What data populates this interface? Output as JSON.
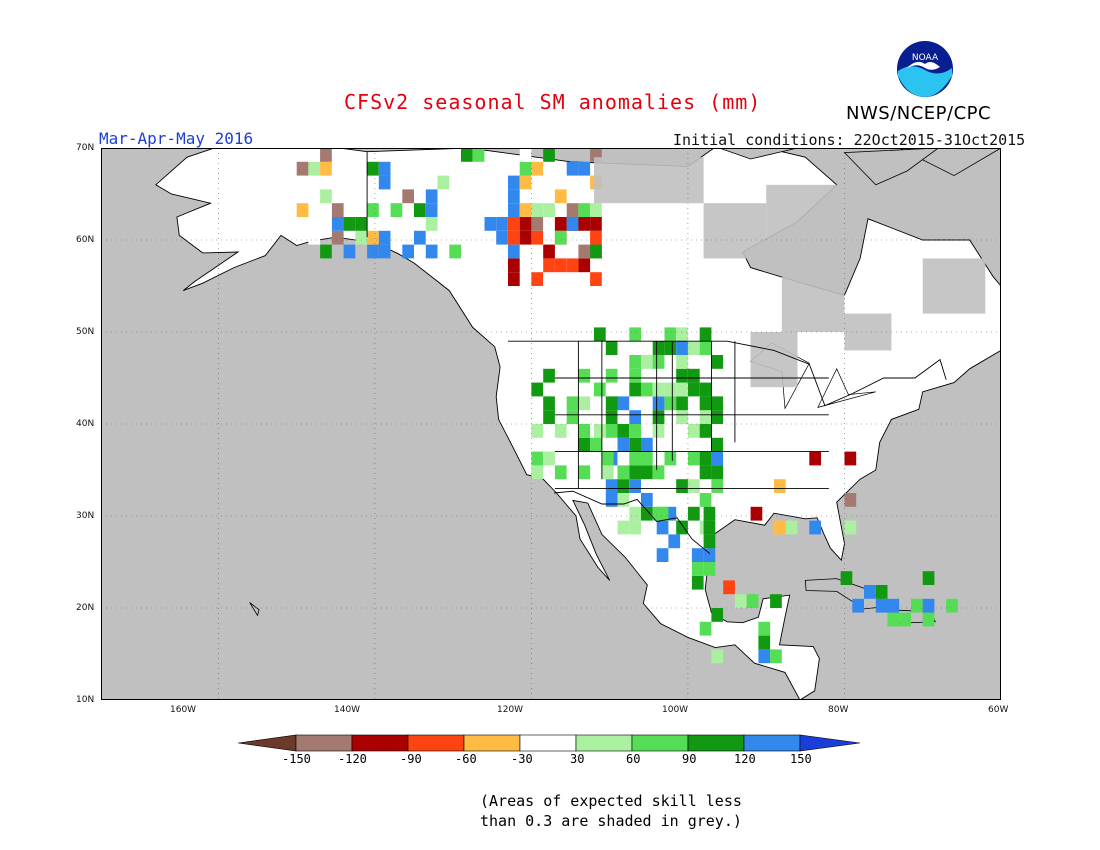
{
  "title": "CFSv2 seasonal SM anomalies (mm)",
  "period": "Mar-Apr-May 2016",
  "initial_conditions": "Initial conditions: 22Oct2015-31Oct2015",
  "org": "NWS/NCEP/CPC",
  "logo_text": "NOAA",
  "note_line1": "(Areas of expected skill less",
  "note_line2": "than 0.3 are shaded in grey.)",
  "map": {
    "lon_range": [
      -175,
      -60
    ],
    "lat_range": [
      10,
      70
    ],
    "lat_labels": [
      "10N",
      "20N",
      "30N",
      "40N",
      "50N",
      "60N",
      "70N"
    ],
    "lon_labels": [
      "160W",
      "140W",
      "120W",
      "100W",
      "80W",
      "60W"
    ],
    "colors": {
      "skill_grey": "#c0c0c0",
      "neutral": "#ffffff"
    }
  },
  "colorbar": {
    "labels": [
      "-150",
      "-120",
      "-90",
      "-60",
      "-30",
      "30",
      "60",
      "90",
      "120",
      "150"
    ],
    "colors": [
      "#6b3a2a",
      "#a47a70",
      "#aa0000",
      "#ff4412",
      "#ffbb44",
      "#ffffff",
      "#aaf0a0",
      "#55dd55",
      "#119911",
      "#3388ee",
      "#1a3fd8"
    ]
  }
}
